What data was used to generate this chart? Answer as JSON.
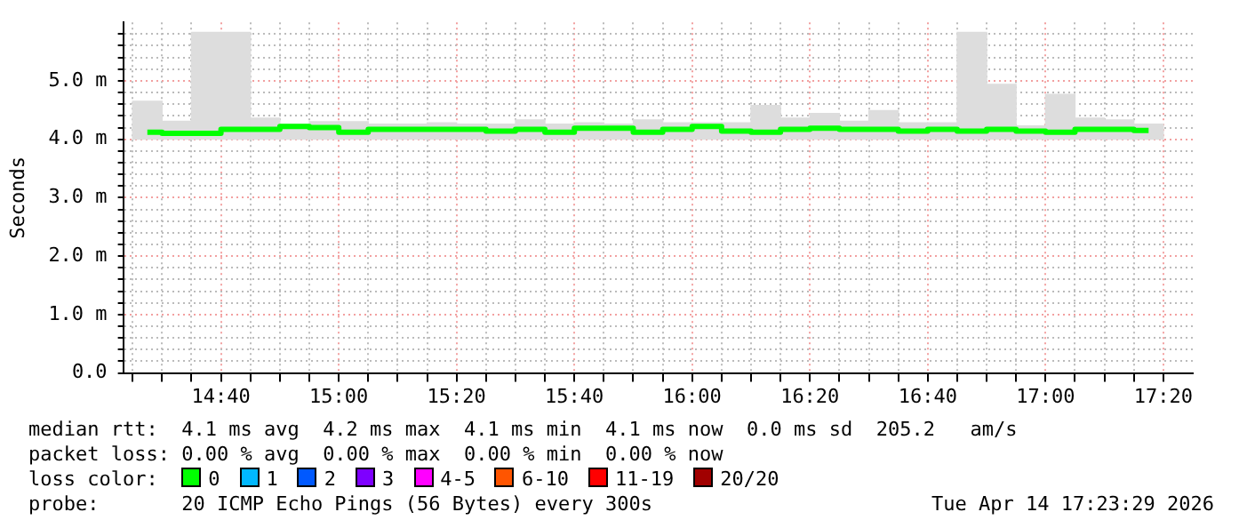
{
  "chart_data": {
    "type": "step",
    "ylabel": "Seconds",
    "legend_title": "loss color:",
    "legend": "bottom",
    "grid": true,
    "xlim": [
      14.39,
      17.4167
    ],
    "ylim": [
      0,
      6
    ],
    "xticks": [
      {
        "value": 14.4167,
        "label": null
      },
      {
        "value": 14.5,
        "label": null
      },
      {
        "value": 14.5833,
        "label": null
      },
      {
        "value": 14.6667,
        "label": "14:40"
      },
      {
        "value": 14.75,
        "label": null
      },
      {
        "value": 14.8333,
        "label": null
      },
      {
        "value": 14.9167,
        "label": null
      },
      {
        "value": 15,
        "label": "15:00"
      },
      {
        "value": 15.0833,
        "label": null
      },
      {
        "value": 15.1667,
        "label": null
      },
      {
        "value": 15.25,
        "label": null
      },
      {
        "value": 15.3333,
        "label": "15:20"
      },
      {
        "value": 15.4167,
        "label": null
      },
      {
        "value": 15.5,
        "label": null
      },
      {
        "value": 15.5833,
        "label": null
      },
      {
        "value": 15.6667,
        "label": "15:40"
      },
      {
        "value": 15.75,
        "label": null
      },
      {
        "value": 15.8333,
        "label": null
      },
      {
        "value": 15.9167,
        "label": null
      },
      {
        "value": 16,
        "label": "16:00"
      },
      {
        "value": 16.0833,
        "label": null
      },
      {
        "value": 16.1667,
        "label": null
      },
      {
        "value": 16.25,
        "label": null
      },
      {
        "value": 16.3333,
        "label": "16:20"
      },
      {
        "value": 16.4167,
        "label": null
      },
      {
        "value": 16.5,
        "label": null
      },
      {
        "value": 16.5833,
        "label": null
      },
      {
        "value": 16.6667,
        "label": "16:40"
      },
      {
        "value": 16.75,
        "label": null
      },
      {
        "value": 16.8333,
        "label": null
      },
      {
        "value": 16.9167,
        "label": null
      },
      {
        "value": 17,
        "label": "17:00"
      },
      {
        "value": 17.0833,
        "label": null
      },
      {
        "value": 17.1667,
        "label": null
      },
      {
        "value": 17.25,
        "label": null
      },
      {
        "value": 17.3333,
        "label": "17:20"
      }
    ],
    "yticks": [
      {
        "value": 0,
        "label": "0.0"
      },
      {
        "value": 0.2,
        "label": null
      },
      {
        "value": 0.4,
        "label": null
      },
      {
        "value": 0.6,
        "label": null
      },
      {
        "value": 0.8,
        "label": null
      },
      {
        "value": 1,
        "label": "1.0 m"
      },
      {
        "value": 1.2,
        "label": null
      },
      {
        "value": 1.4,
        "label": null
      },
      {
        "value": 1.6,
        "label": null
      },
      {
        "value": 1.8,
        "label": null
      },
      {
        "value": 2,
        "label": "2.0 m"
      },
      {
        "value": 2.2,
        "label": null
      },
      {
        "value": 2.4,
        "label": null
      },
      {
        "value": 2.6,
        "label": null
      },
      {
        "value": 2.8,
        "label": null
      },
      {
        "value": 3,
        "label": "3.0 m"
      },
      {
        "value": 3.2,
        "label": null
      },
      {
        "value": 3.4,
        "label": null
      },
      {
        "value": 3.6,
        "label": null
      },
      {
        "value": 3.8,
        "label": null
      },
      {
        "value": 4,
        "label": "4.0 m"
      },
      {
        "value": 4.2,
        "label": null
      },
      {
        "value": 4.4,
        "label": null
      },
      {
        "value": 4.6,
        "label": null
      },
      {
        "value": 4.8,
        "label": null
      },
      {
        "value": 5,
        "label": "5.0 m"
      },
      {
        "value": 5.2,
        "label": null
      },
      {
        "value": 5.4,
        "label": null
      },
      {
        "value": 5.6,
        "label": null
      },
      {
        "value": 5.8,
        "label": null
      }
    ],
    "x": [
      14.4583,
      14.5417,
      14.625,
      14.7083,
      14.7917,
      14.875,
      14.9583,
      15.0417,
      15.125,
      15.2083,
      15.2917,
      15.375,
      15.4583,
      15.5417,
      15.625,
      15.7083,
      15.7917,
      15.875,
      15.9583,
      16.0417,
      16.125,
      16.2083,
      16.2917,
      16.375,
      16.4583,
      16.5417,
      16.625,
      16.7083,
      16.7917,
      16.875,
      16.9583,
      17.0417,
      17.125,
      17.2083,
      17.2917
    ],
    "series": [
      {
        "type": "bar",
        "color": "#dddddd",
        "base": [
          4,
          4,
          4,
          4,
          4,
          4,
          4,
          4,
          4,
          4,
          4,
          4,
          4,
          4,
          4,
          4,
          4,
          4,
          4,
          4,
          4,
          4,
          4,
          4,
          4,
          4,
          4,
          4,
          4,
          4,
          4,
          4,
          4,
          4,
          4
        ],
        "values": [
          0.65,
          0.31,
          1.83,
          1.83,
          0.36,
          0.26,
          0.3,
          0.3,
          0.26,
          0.26,
          0.28,
          0.26,
          0.26,
          0.33,
          0.26,
          0.28,
          0.26,
          0.33,
          0.28,
          0.28,
          0.28,
          0.58,
          0.36,
          0.44,
          0.31,
          0.49,
          0.28,
          0.28,
          1.83,
          0.94,
          0.23,
          0.77,
          0.36,
          0.33,
          0.26
        ]
      },
      {
        "name": "0",
        "color": "#00ff00",
        "values": [
          4.12,
          4.1,
          4.1,
          4.17,
          4.17,
          4.22,
          4.2,
          4.12,
          4.17,
          4.17,
          4.17,
          4.17,
          4.14,
          4.17,
          4.12,
          4.19,
          4.19,
          4.12,
          4.17,
          4.22,
          4.14,
          4.12,
          4.17,
          4.19,
          4.17,
          4.17,
          4.14,
          4.17,
          4.14,
          4.17,
          4.14,
          4.12,
          4.17,
          4.17,
          4.15
        ]
      },
      {
        "name": "1",
        "color": "#00b8ff",
        "values": [
          null,
          null,
          null,
          null,
          null,
          null,
          null,
          null,
          null,
          null,
          null,
          null,
          null,
          null,
          null,
          null,
          null,
          null,
          null,
          null,
          null,
          null,
          null,
          null,
          null,
          null,
          null,
          null,
          null,
          null,
          null,
          null,
          null,
          null,
          null
        ]
      },
      {
        "name": "2",
        "color": "#0059ff",
        "values": [
          null,
          null,
          null,
          null,
          null,
          null,
          null,
          null,
          null,
          null,
          null,
          null,
          null,
          null,
          null,
          null,
          null,
          null,
          null,
          null,
          null,
          null,
          null,
          null,
          null,
          null,
          null,
          null,
          null,
          null,
          null,
          null,
          null,
          null,
          null
        ]
      },
      {
        "name": "3",
        "color": "#7e00ff",
        "values": [
          null,
          null,
          null,
          null,
          null,
          null,
          null,
          null,
          null,
          null,
          null,
          null,
          null,
          null,
          null,
          null,
          null,
          null,
          null,
          null,
          null,
          null,
          null,
          null,
          null,
          null,
          null,
          null,
          null,
          null,
          null,
          null,
          null,
          null,
          null
        ]
      },
      {
        "name": "4-5",
        "color": "#ff00ff",
        "values": [
          null,
          null,
          null,
          null,
          null,
          null,
          null,
          null,
          null,
          null,
          null,
          null,
          null,
          null,
          null,
          null,
          null,
          null,
          null,
          null,
          null,
          null,
          null,
          null,
          null,
          null,
          null,
          null,
          null,
          null,
          null,
          null,
          null,
          null,
          null
        ]
      },
      {
        "name": "6-10",
        "color": "#ff5500",
        "values": [
          null,
          null,
          null,
          null,
          null,
          null,
          null,
          null,
          null,
          null,
          null,
          null,
          null,
          null,
          null,
          null,
          null,
          null,
          null,
          null,
          null,
          null,
          null,
          null,
          null,
          null,
          null,
          null,
          null,
          null,
          null,
          null,
          null,
          null,
          null
        ]
      },
      {
        "name": "11-19",
        "color": "#ff0000",
        "values": [
          null,
          null,
          null,
          null,
          null,
          null,
          null,
          null,
          null,
          null,
          null,
          null,
          null,
          null,
          null,
          null,
          null,
          null,
          null,
          null,
          null,
          null,
          null,
          null,
          null,
          null,
          null,
          null,
          null,
          null,
          null,
          null,
          null,
          null,
          null
        ]
      },
      {
        "name": "20/20",
        "color": "#a10000",
        "values": [
          null,
          null,
          null,
          null,
          null,
          null,
          null,
          null,
          null,
          null,
          null,
          null,
          null,
          null,
          null,
          null,
          null,
          null,
          null,
          null,
          null,
          null,
          null,
          null,
          null,
          null,
          null,
          null,
          null,
          null,
          null,
          null,
          null,
          null,
          null
        ]
      }
    ],
    "annotations": [
      "median rtt:  4.1 ms avg  4.2 ms max  4.1 ms min  4.1 ms now  0.0 ms sd  205.2   am/s",
      "packet loss: 0.00 % avg  0.00 % max  0.00 % min  0.00 % now",
      "probe:       20 ICMP Echo Pings (56 Bytes) every 300s",
      "Tue Apr 14 17:23:29 2026"
    ]
  }
}
